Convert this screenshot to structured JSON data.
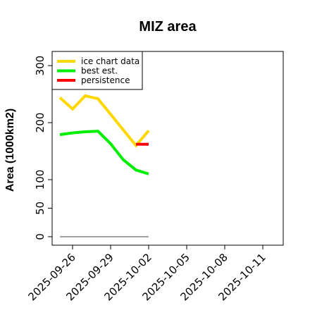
{
  "chart_data": {
    "type": "line",
    "title": "MIZ area",
    "xlabel": "",
    "ylabel": "Area (1000km2)",
    "x_tick_labels": [
      "2025-09-26",
      "2025-09-29",
      "2025-10-02",
      "2025-10-05",
      "2025-10-08",
      "2025-10-11"
    ],
    "y_ticks": [
      0,
      50,
      100,
      200,
      300
    ],
    "xlim": [
      "2025-09-25",
      "2025-10-12"
    ],
    "ylim": [
      -5,
      315
    ],
    "grid": false,
    "legend_position": "top-left",
    "series": [
      {
        "name": "ice chart data",
        "color": "#FFD700",
        "x": [
          "2025-09-25",
          "2025-09-26",
          "2025-09-27",
          "2025-09-28",
          "2025-10-01",
          "2025-10-02"
        ],
        "y": [
          244,
          224,
          247,
          242,
          160,
          186
        ]
      },
      {
        "name": "best est.",
        "color": "#00EE00",
        "x": [
          "2025-09-25",
          "2025-09-26",
          "2025-09-27",
          "2025-09-28",
          "2025-09-29",
          "2025-09-30",
          "2025-10-01",
          "2025-10-02"
        ],
        "y": [
          179,
          182,
          184,
          185,
          163,
          135,
          117,
          110
        ]
      },
      {
        "name": "persistence",
        "color": "#FF0000",
        "x": [
          "2025-10-01",
          "2025-10-02"
        ],
        "y": [
          162,
          162
        ]
      },
      {
        "name": "",
        "color": "#808080",
        "x": [
          "2025-09-25",
          "2025-10-02"
        ],
        "y": [
          0,
          0
        ]
      }
    ]
  }
}
